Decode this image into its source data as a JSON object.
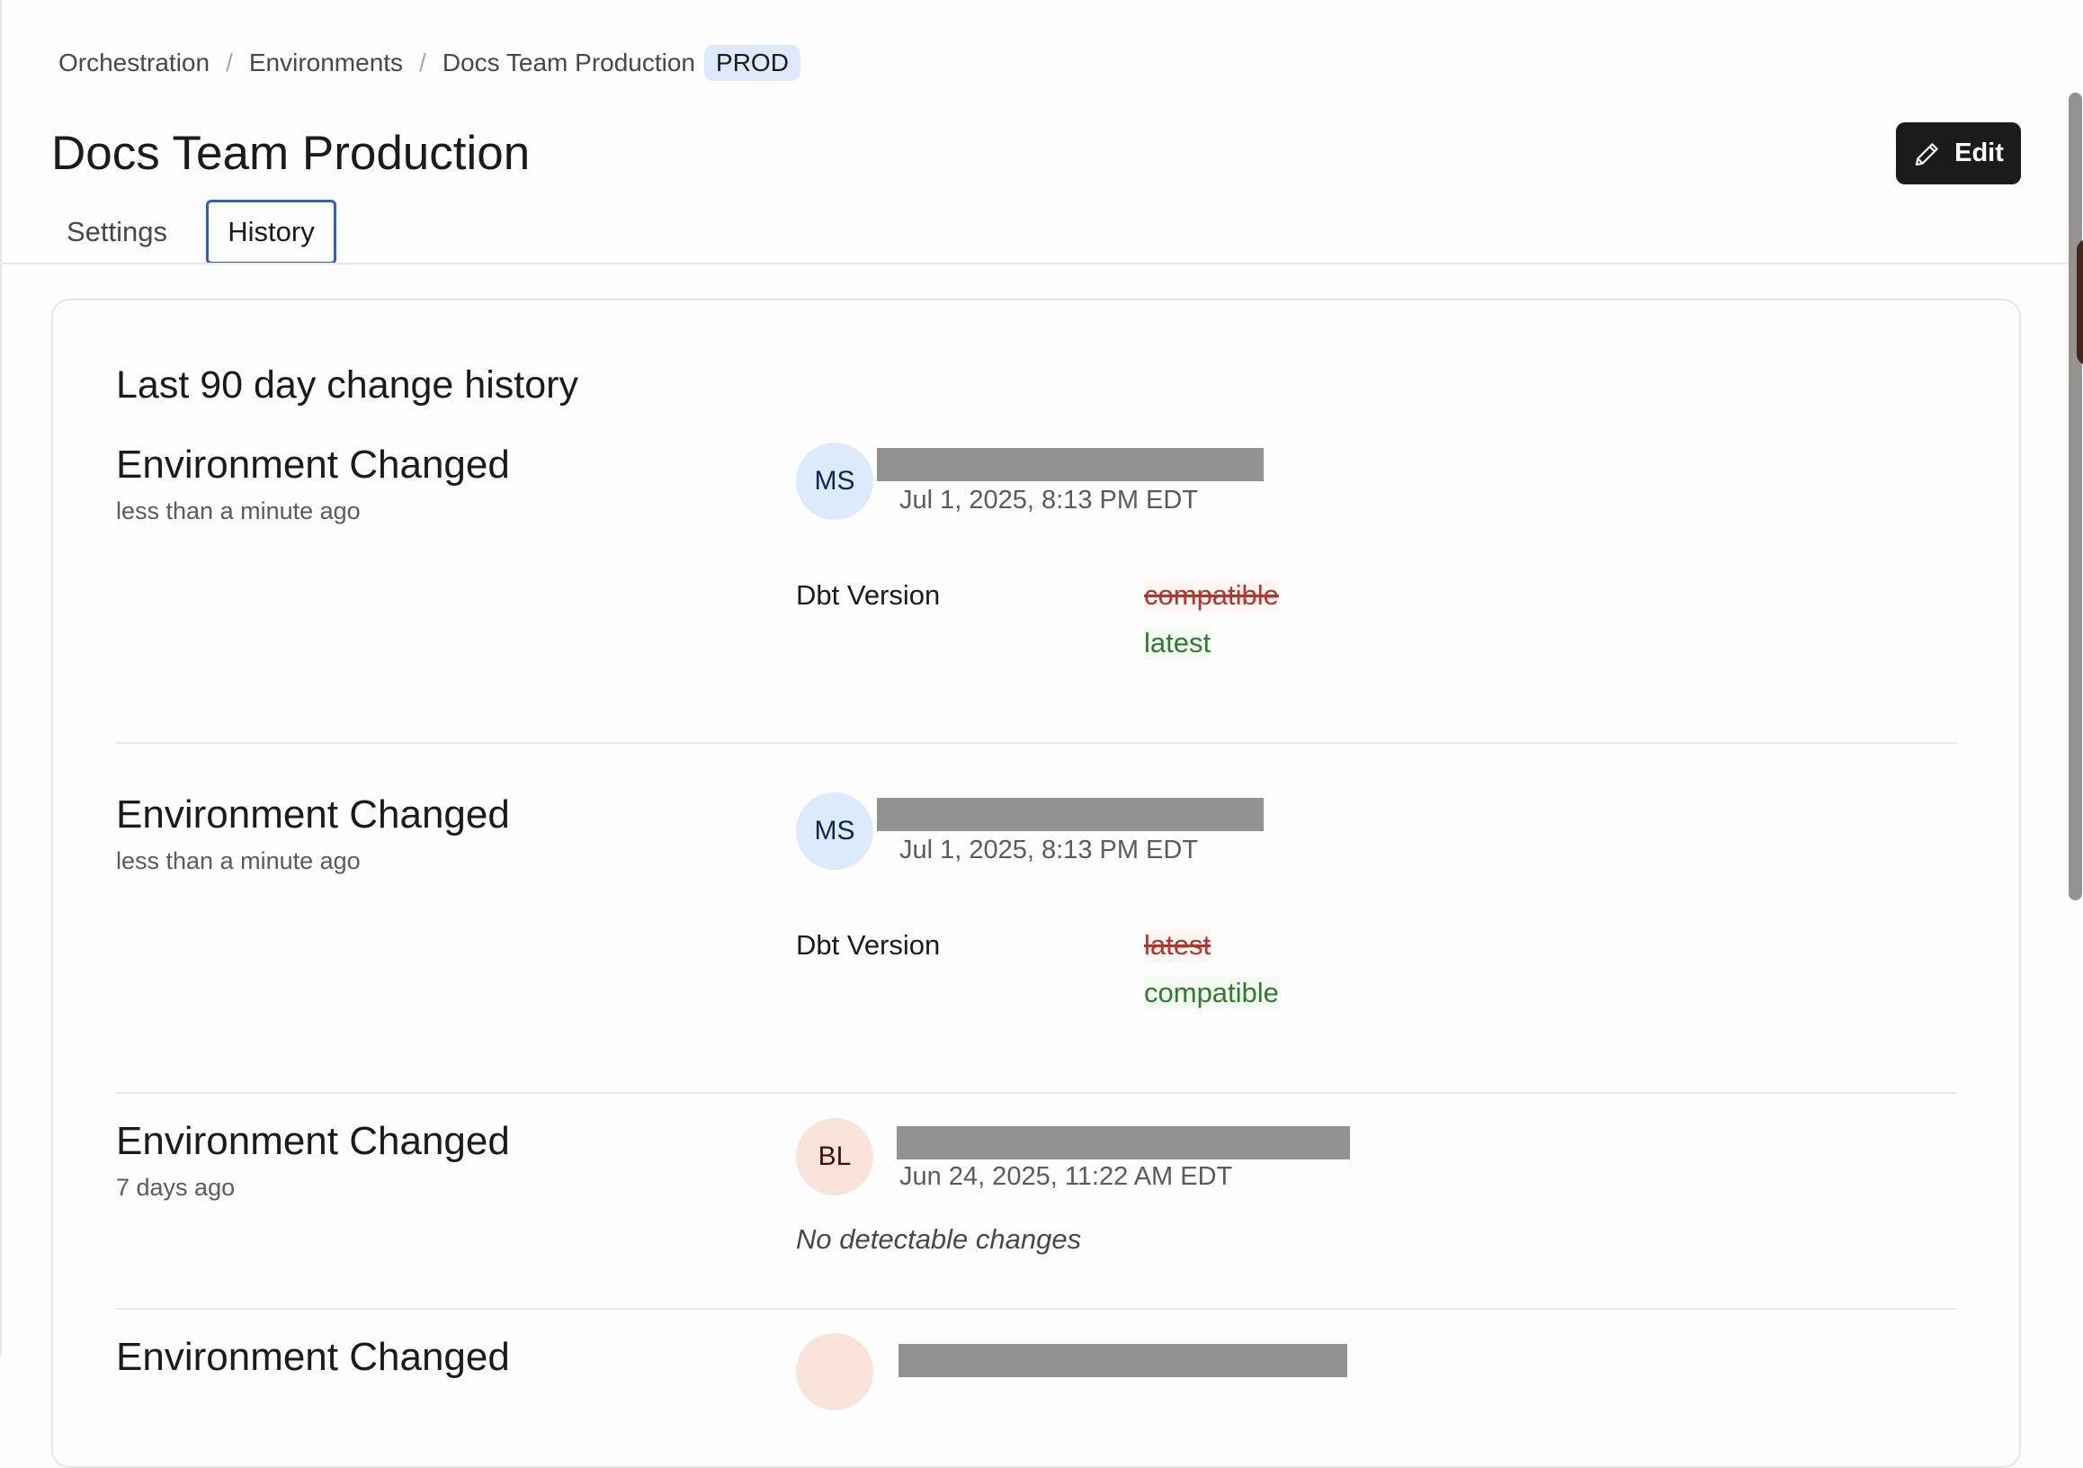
{
  "breadcrumb": {
    "items": [
      "Orchestration",
      "Environments",
      "Docs Team Production"
    ],
    "badge": "PROD"
  },
  "page": {
    "title": "Docs Team Production",
    "edit_label": "Edit",
    "edit_icon": "pencil-icon"
  },
  "tabs": [
    {
      "label": "Settings",
      "active": false
    },
    {
      "label": "History",
      "active": true
    }
  ],
  "history": {
    "heading": "Last 90 day change history",
    "entries": [
      {
        "title": "Environment Changed",
        "ago": "less than a minute ago",
        "initials": "MS",
        "date": "Jul 1, 2025, 8:13 PM EDT",
        "field": "Dbt Version",
        "old": "compatible",
        "new": "latest"
      },
      {
        "title": "Environment Changed",
        "ago": "less than a minute ago",
        "initials": "MS",
        "date": "Jul 1, 2025, 8:13 PM EDT",
        "field": "Dbt Version",
        "old": "latest",
        "new": "compatible"
      },
      {
        "title": "Environment Changed",
        "ago": "7 days ago",
        "initials": "BL",
        "date": "Jun 24, 2025, 11:22 AM EDT",
        "note": "No detectable changes"
      },
      {
        "title": "Environment Changed"
      }
    ]
  },
  "colors": {
    "accent": "#2a5fc8",
    "removed": "#b8312a",
    "added": "#2d7c2d",
    "badge_bg": "#dceafb"
  }
}
